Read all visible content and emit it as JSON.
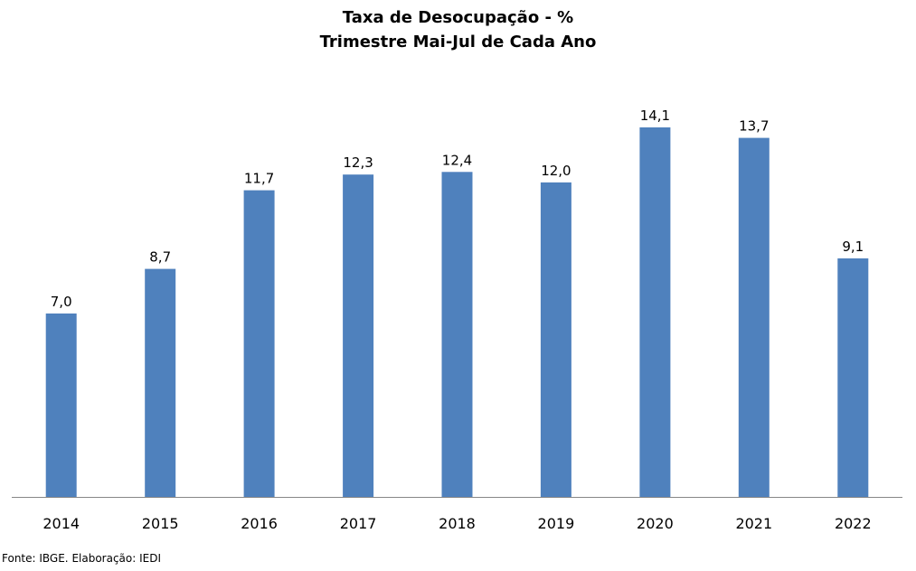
{
  "chart_data": {
    "type": "bar",
    "title": "Taxa de Desocupação - %",
    "subtitle": "Trimestre Mai-Jul de Cada Ano",
    "categories": [
      "2014",
      "2015",
      "2016",
      "2017",
      "2018",
      "2019",
      "2020",
      "2021",
      "2022"
    ],
    "values": [
      7.0,
      8.7,
      11.7,
      12.3,
      12.4,
      12.0,
      14.1,
      13.7,
      9.1
    ],
    "data_labels": [
      "7,0",
      "8,7",
      "11,7",
      "12,3",
      "12,4",
      "12,0",
      "14,1",
      "13,7",
      "9,1"
    ],
    "ylim": [
      0,
      14.1
    ],
    "grid": false,
    "legend": "none",
    "bar_color": "#4F81BD",
    "axis_color": "#878787"
  },
  "source_note": "Fonte: IBGE. Elaboração: IEDI"
}
